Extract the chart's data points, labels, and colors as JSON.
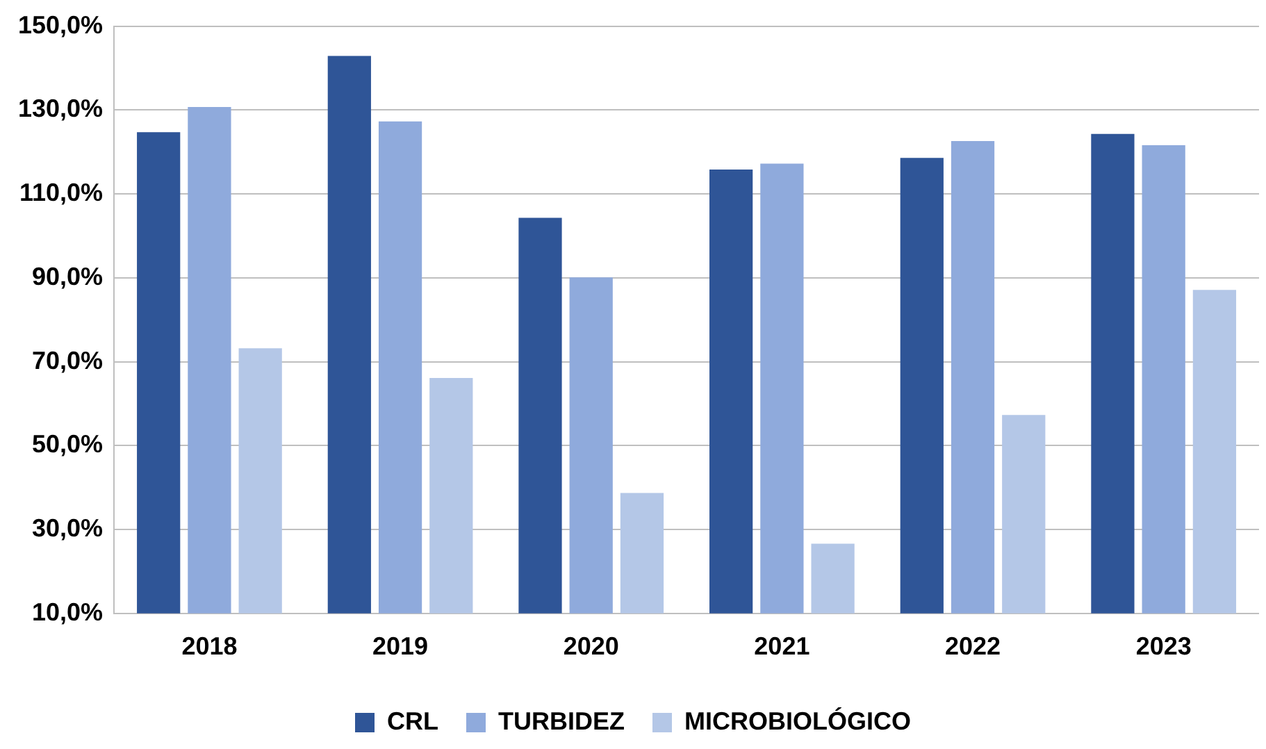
{
  "chart_data": {
    "type": "bar",
    "categories": [
      "2018",
      "2019",
      "2020",
      "2021",
      "2022",
      "2023"
    ],
    "series": [
      {
        "name": "CRL",
        "color": "#2f5597",
        "values": [
          124.7,
          142.9,
          104.3,
          115.8,
          118.6,
          124.3
        ]
      },
      {
        "name": "TURBIDEZ",
        "color": "#8faadc",
        "values": [
          130.7,
          127.3,
          90.1,
          117.2,
          122.6,
          121.6
        ]
      },
      {
        "name": "MICROBIOLÓGICO",
        "color": "#b4c7e7",
        "values": [
          73.2,
          66.1,
          38.7,
          26.6,
          57.3,
          87.1
        ]
      }
    ],
    "ylim": [
      10,
      150
    ],
    "yticks": [
      {
        "value": 10,
        "label": "10,0%"
      },
      {
        "value": 30,
        "label": "30,0%"
      },
      {
        "value": 50,
        "label": "50,0%"
      },
      {
        "value": 70,
        "label": "70,0%"
      },
      {
        "value": 90,
        "label": "90,0%"
      },
      {
        "value": 110,
        "label": "110,0%"
      },
      {
        "value": 130,
        "label": "130,0%"
      },
      {
        "value": 150,
        "label": "150,0%"
      }
    ],
    "grid": "y",
    "legend": "bottom"
  }
}
